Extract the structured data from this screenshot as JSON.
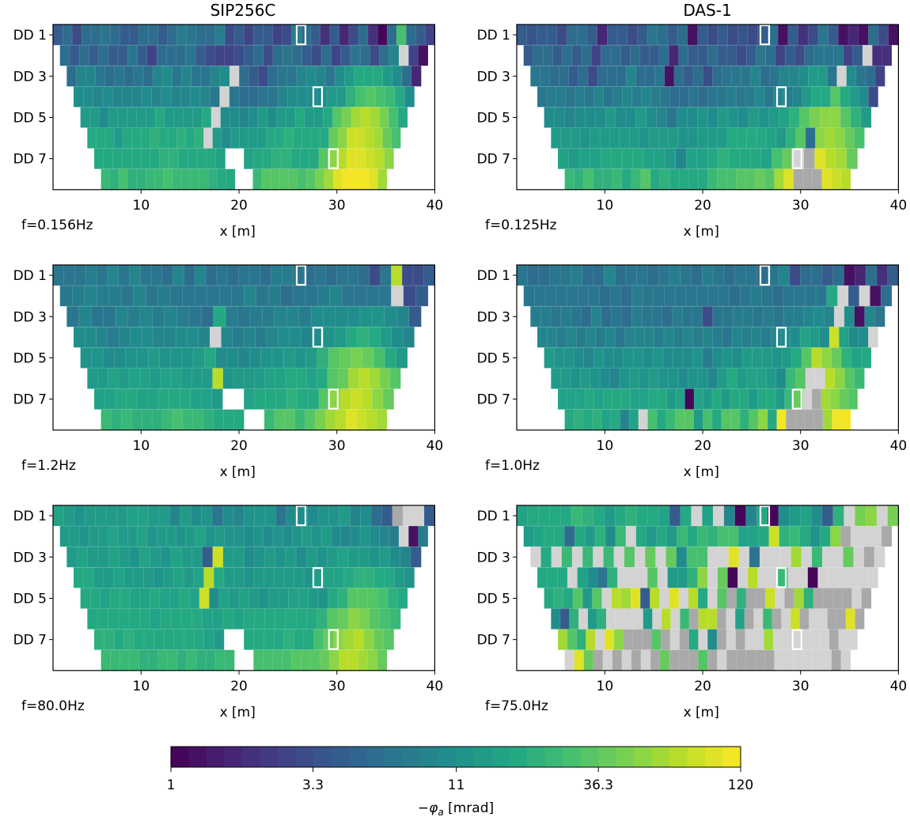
{
  "chart_data": {
    "type": "heatmap",
    "description": "Apparent phase pseudosections (dipole-dipole levels DD1-DD8) along profile, two instruments at three frequencies",
    "columns": [
      {
        "title": "SIP256C"
      },
      {
        "title": "DAS-1"
      }
    ],
    "xlabel": "x [m]",
    "xlim": [
      1,
      40
    ],
    "xticks": [
      "10",
      "20",
      "30",
      "40"
    ],
    "ytick_labels": [
      "DD 1",
      "DD 3",
      "DD 5",
      "DD 7"
    ],
    "levels": 8,
    "colorbar": {
      "label": "−φa [mrad]",
      "label_main": "−φ",
      "label_sub": "a",
      "label_unit": " [mrad]",
      "scale": "log",
      "range": [
        1,
        120
      ],
      "ticks": [
        "1",
        "3.3",
        "11",
        "36.3",
        "120"
      ],
      "colormap": "viridis",
      "n_bins": 32
    },
    "masked_color_light": "#d3d3d3",
    "masked_color_dark": "#a9a9a9",
    "highlight_boxes_x": [
      26.3,
      28.0,
      29.6
    ],
    "highlight_boxes_level": [
      1,
      4,
      7
    ],
    "panels": [
      {
        "column": 0,
        "freq": "f=0.156Hz",
        "rows": [
          "0.30,0.35,0.25,0.35,0.35,0.40,0.35,0.30,0.30,0.35,0.35,0.30,0.35,0.42,0.38,0.35,0.35,0.42,0.25,0.30,0.20,0.30,0.30,0.20,0.25,0.42,0.35,0.30,0.15,0.30,0.10,0.25,0.35,0.15,0.02,0.35,0.70,0.35,0.30,0.20",
          "0.35,0.30,0.35,0.30,0.35,0.30,0.30,0.40,0.30,0.20,0.35,0.35,0.35,0.40,0.30,0.25,0.20,0.20,0.25,0.30,0.35,0.25,0.35,0.40,0.35,0.30,0.25,0.35,0.20,0.30,0.40,0.35,0.25,0.35,0.45,L,0.20,0.05",
          "0.35,0.45,0.45,0.40,0.35,0.40,0.35,0.40,0.35,0.45,0.50,0.40,0.45,0.40,0.40,0.45,0.50,L,0.35,0.30,0.25,0.35,0.40,0.40,0.45,0.50,0.45,0.40,0.50,0.55,0.60,0.62,0.60,0.55,0.50,0.35,0.10",
          "0.50,0.50,0.45,0.50,0.45,0.45,0.45,0.50,0.45,0.50,0.45,0.45,0.50,0.45,0.40,L,0.40,0.35,0.35,0.40,0.40,0.45,0.50,0.50,0.50,0.50,0.55,0.55,0.65,0.70,0.72,0.70,0.68,0.62,0.50",
          "0.55,0.55,0.50,0.55,0.55,0.55,0.55,0.55,0.60,0.55,0.55,0.55,0.55,0.60,L,0.50,0.50,0.45,0.50,0.55,0.50,0.55,0.55,0.60,0.55,0.55,0.60,0.75,0.80,0.85,0.88,0.85,0.80,0.70,0.60",
          "0.60,0.60,0.60,0.55,0.60,0.60,0.60,0.65,0.60,0.60,0.65,0.60,0.65,L,0.55,0.50,0.55,0.55,0.55,0.55,0.60,0.62,0.65,0.60,0.60,0.62,0.60,0.78,0.82,0.92,0.92,0.88,0.85,0.78,0.70",
          "0.62,0.60,0.62,0.62,0.60,0.62,0.62,0.65,0.65,0.62,0.62,0.60,0.60,0.58,N,N,0.58,0.62,0.62,0.65,0.65,0.62,0.62,0.60,0.75,0.82,0.88,0.95,0.95,0.92,0.88,0.82",
          "0.68,0.65,0.70,0.65,0.65,0.68,0.68,0.70,0.68,0.68,0.68,0.68,0.65,0.62,0.62,N,N,0.68,0.72,0.72,0.72,0.72,0.70,0.72,0.80,0.85,0.95,0.98,0.98,0.98,0.95,0.85"
        ]
      },
      {
        "column": 1,
        "freq": "f=0.125Hz",
        "rows": [
          "0.30,0.28,0.30,0.30,0.25,0.35,0.35,0.30,0.10,0.30,0.30,0.25,0.30,0.40,0.35,0.30,0.35,0.05,0.30,0.25,0.30,0.25,0.28,0.25,0.30,0.35,0.05,0.30,0.15,0.25,0.40,0.30,0.05,0.10,0.05,0.35,0.25,0.05",
          "0.30,0.35,0.35,0.30,0.35,0.30,0.35,0.20,0.35,0.35,0.30,0.35,0.30,0.30,0.35,0.10,0.35,0.30,0.30,0.35,0.30,0.30,0.25,0.30,0.40,0.35,0.20,0.30,0.25,0.35,0.40,0.40,0.40,0.20,0.30,L,0.15,0.15",
          "0.40,0.40,0.35,0.35,0.30,0.35,0.25,0.35,0.35,0.35,0.45,0.35,0.35,0.40,0.05,0.35,0.30,0.35,0.25,0.35,0.40,0.40,0.40,0.45,0.35,0.40,0.45,0.45,0.50,0.55,0.55,0.40,L,0.50,0.40,0.35,0.20",
          "0.40,0.42,0.42,0.40,0.42,0.38,0.45,0.40,0.42,0.45,0.42,0.45,0.42,0.40,0.35,0.35,0.40,0.35,0.40,0.40,0.42,0.40,0.42,0.45,0.40,0.45,0.42,0.45,0.55,0.60,0.62,0.75,0.60,0.55,0.50,0.25",
          "0.50,0.50,0.45,0.50,0.50,0.50,0.55,0.50,0.50,0.55,0.50,0.45,0.40,0.50,0.50,0.52,0.50,0.55,0.52,0.50,0.55,0.52,0.55,0.58,0.65,0.72,0.80,0.82,0.82,0.75,0.65,0.55",
          "0.55,0.55,0.55,0.52,0.55,0.55,0.55,0.55,0.55,0.52,0.55,0.55,0.55,0.52,0.52,0.55,0.55,0.55,0.60,0.62,0.60,0.60,0.58,0.55,0.65,0.75,0.35,0.82,0.85,0.82,0.78,0.70",
          "0.58,0.55,0.58,0.58,0.60,0.60,0.62,0.60,0.58,0.58,0.55,0.45,0.58,0.58,0.62,0.65,0.62,0.62,0.60,0.58,0.70,0.78,L,D,0.95,0.88,0.85,0.78",
          "0.68,0.65,0.70,0.65,0.65,0.68,0.62,0.68,0.72,0.62,0.65,0.62,0.62,0.60,0.62,0.68,0.70,0.70,0.72,0.75,0.78,0.72,0.85,0.95,D,D,D,0.95,0.92,0.90"
        ]
      },
      {
        "column": 0,
        "freq": "f=1.2Hz",
        "rows": [
          "0.40,0.40,0.40,0.42,0.40,0.45,0.40,0.45,0.40,0.40,0.35,0.45,0.35,0.45,0.35,0.40,0.35,0.40,0.40,0.35,0.42,0.42,0.40,0.35,0.38,0.35,0.40,0.40,0.35,0.25,0.40,0.90,0.25,0.25,0.30",
          "0.40,0.42,0.45,0.42,0.42,0.40,0.45,0.40,0.42,0.40,0.40,0.38,0.40,0.40,0.38,0.45,0.40,0.42,0.35,0.40,0.40,0.42,0.45,0.40,0.40,0.40,0.38,L,0.25,0.30",
          "0.40,0.45,0.40,0.40,0.45,0.42,0.45,0.42,0.45,0.42,0.40,0.35,0.60,0.42,0.40,0.42,0.42,0.45,0.45,0.42,0.48,0.50,0.50,0.50,0.52,0.52,0.50,0.45,0.30",
          "0.50,0.48,0.45,0.42,0.45,0.48,0.48,0.45,0.45,0.48,0.48,0.45,L,0.45,0.42,0.45,0.42,0.45,0.48,0.48,0.45,0.50,0.52,0.55,0.62,0.65,0.62,0.55,0.50,0.45",
          "0.52,0.52,0.50,0.50,0.52,0.52,0.55,0.52,0.52,0.52,0.55,0.62,0.50,0.48,0.45,0.50,0.52,0.52,0.55,0.52,0.55,0.65,0.72,0.78,0.80,0.78,0.70,0.62,0.55",
          "0.55,0.55,0.58,0.55,0.58,0.58,0.55,0.58,0.58,0.55,0.55,0.55,0.88,0.52,0.55,0.55,0.55,0.58,0.58,0.60,0.60,0.58,0.60,0.72,0.78,0.85,0.88,0.85,0.80,0.75",
          "0.58,0.58,0.60,0.60,0.58,0.58,0.60,0.60,0.60,0.58,0.58,0.55,N,N,0.58,0.60,0.62,0.60,0.65,0.62,0.62,0.75,0.82,0.90,0.92,0.88,0.82,0.78",
          "0.68,0.65,0.68,0.65,0.65,0.65,0.68,0.70,0.68,0.68,0.65,0.62,0.62,0.60,N,N,0.68,0.72,0.72,0.68,0.75,0.80,0.85,0.90,0.95,0.92,0.88,0.85"
        ]
      },
      {
        "column": 1,
        "freq": "f=1.0Hz",
        "rows": [
          "0.40,0.35,0.35,0.40,0.40,0.42,0.35,0.35,0.45,0.35,0.38,0.40,0.35,0.40,0.42,0.38,0.35,0.42,0.38,0.35,0.40,0.38,0.35,0.40,0.45,0.25,0.35,0.35,0.30,0.35,0.05,0.10,0.35,0.15,0.30",
          "0.40,0.40,0.38,0.40,0.40,0.38,0.40,0.35,0.40,0.35,0.42,0.38,0.40,0.38,0.40,0.38,0.40,0.38,0.38,0.35,0.40,0.42,0.40,0.35,0.38,0.38,0.40,0.40,0.62,L,0.30,L,0.05,0.35",
          "0.42,0.42,0.40,0.42,0.38,0.35,0.45,0.35,0.40,0.35,0.42,0.40,0.38,0.35,0.42,0.38,0.40,0.25,0.40,0.40,0.42,0.42,0.40,0.42,0.38,0.42,0.42,0.45,0.50,0.45,L,0.50,0.05,0.45,0.38",
          "0.45,0.45,0.42,0.45,0.42,0.45,0.42,0.45,0.40,0.45,0.45,0.45,0.42,0.45,0.42,0.45,0.42,0.45,0.42,0.40,0.45,0.42,0.45,0.42,0.45,0.48,0.50,0.58,0.55,0.50,0.92,0.58,0.50,0.48,L",
          "0.55,0.52,0.52,0.50,0.45,0.52,0.50,0.50,0.52,0.52,0.50,0.52,0.50,0.48,0.50,0.52,0.42,0.50,0.52,0.48,0.55,0.55,0.55,0.52,0.55,0.62,0.72,0.88,0.82,0.78,0.65,0.58,0.62",
          "0.55,0.55,0.52,0.55,0.52,0.50,0.45,0.52,0.55,0.52,0.55,0.52,0.52,0.50,0.52,0.52,0.45,0.55,0.60,0.55,0.58,0.58,0.55,0.48,0.68,0.72,L,L,0.88,0.82,0.75,0.68",
          "0.58,0.58,0.58,0.60,0.58,0.60,0.62,0.60,0.58,0.58,0.60,0.62,0.55,0.58,0.02,0.58,0.55,0.60,0.55,0.60,0.62,0.55,0.60,0.60,0.55,0.68,0.78,L,D,0.85,0.82,0.78,0.75",
          "0.60,0.65,0.62,0.65,0.58,0.62,0.45,0.58,L,0.70,0.62,0.68,0.72,0.72,0.55,0.70,0.62,0.72,0.75,0.65,0.75,0.82,0.62,0.98,D,D,D,D,0.85,0.98,0.98"
        ]
      },
      {
        "column": 0,
        "freq": "f=80.0Hz",
        "rows": [
          "0.58,0.55,0.52,0.55,0.55,0.55,0.55,0.58,0.58,0.55,0.55,0.45,0.55,0.50,0.52,0.40,0.48,0.45,0.52,0.52,0.52,0.40,0.48,0.50,0.50,0.52,0.52,0.55,0.45,0.48,0.35,0.30,D,L,L,0.30",
          "0.55,0.55,0.52,0.55,0.55,0.58,0.55,0.55,0.58,0.52,0.55,0.55,0.52,0.55,0.58,0.52,0.55,0.52,0.52,0.50,0.52,0.50,0.52,0.50,0.52,0.55,0.52,0.55,0.50,0.45,0.48,0.52,0.50,0.45,0.42,L,0.05,0.42",
          "0.55,0.58,0.55,0.55,0.58,0.55,0.52,0.58,0.55,0.52,0.58,0.55,0.55,0.30,0.92,0.55,0.55,0.48,0.52,0.55,0.52,0.55,0.50,0.55,0.52,0.55,0.58,0.55,0.55,0.52,0.55,0.50,0.45,0.30",
          "0.60,0.60,0.55,0.55,0.58,0.55,0.55,0.55,0.52,0.55,0.58,0.55,0.58,0.90,0.60,0.55,0.55,0.52,0.55,0.55,0.55,0.55,0.55,0.52,0.55,0.58,0.58,0.62,0.65,0.65,0.62,0.60,0.55,0.52",
          "0.60,0.60,0.58,0.60,0.60,0.58,0.58,0.60,0.58,0.58,0.60,0.58,0.92,0.50,0.58,0.55,0.58,0.55,0.52,0.55,0.55,0.58,0.58,0.55,0.52,0.62,0.65,0.72,0.75,0.75,0.70,0.65,0.60",
          "0.62,0.60,0.60,0.62,0.60,0.60,0.58,0.60,0.62,0.60,0.60,0.58,0.58,0.60,0.58,0.60,0.60,0.62,0.60,0.60,0.60,0.62,0.65,0.72,0.78,0.82,0.80,0.75,0.70,0.68",
          "0.65,0.65,0.60,0.65,0.62,0.60,0.62,0.60,0.62,0.60,0.60,0.58,0.55,N,N,0.60,0.62,0.62,0.62,0.65,0.62,0.60,0.70,0.78,0.82,0.85,0.88,0.82,0.78,0.75",
          "0.68,0.68,0.68,0.68,0.65,0.65,0.68,0.68,0.65,0.68,0.65,0.65,0.68,0.68,N,N,0.70,0.70,0.70,0.70,0.72,0.72,0.72,0.78,0.82,0.88,0.90,0.85,0.82,0.78"
        ]
      },
      {
        "column": 1,
        "freq": "f=75.0Hz",
        "rows": [
          "0.58,0.60,0.60,0.60,0.62,0.68,0.65,0.60,0.55,0.62,0.65,0.60,0.62,0.58,0.30,0.62,L,0.58,L,0.45,0.02,0.45,0.62,0.02,0.50,0.55,0.58,0.50,0.30,0.65,L,0.80,0.82,L,0.80",
          "0.55,0.58,0.60,0.62,0.35,0.60,0.55,0.65,0.50,0.68,L,0.62,0.55,0.62,0.55,0.68,0.62,0.68,0.65,0.70,0.70,0.58,0.58,0.62,0.92,0.65,0.68,0.62,0.52,0.62,0.82,D,L,L,L,D",
          "L,0.62,L,0.68,L,0.68,L,0.68,L,0.75,L,0.78,L,0.78,0.50,0.70,0.70,L,L,0.95,L,0.40,L,L,L,0.85,L,0.68,L,L,0.78,L,D,L",
          "0.60,0.62,0.60,L,0.58,0.50,0.40,0.65,L,L,L,0.75,L,0.55,0.55,0.65,0.82,L,0.78,0.02,L,0.90,L,L,0.68,L,L,0.02,L,L,L,L,L,L",
          "0.62,0.65,0.60,0.75,0.55,0.72,L,0.88,0.85,0.95,0.30,0.88,L,0.95,L,0.88,0.60,L,0.75,D,0.65,D,D,0.92,L,D,0.85,0.65,D,D,D,D,L,D",
          "0.50,0.30,0.65,L,0.55,0.65,L,L,L,L,0.55,L,0.90,L,0.68,D,0.88,0.88,D,L,0.58,D,L,0.68,D,L,0.92,D,L,L,D,D,0.95,D",
          "0.85,0.75,0.65,0.90,L,0.95,0.82,D,D,D,0.75,D,L,D,0.60,L,0.50,D,L,D,L,L,0.85,L,L,L,L,L,L,D,L,L",
          "L,0.95,0.78,D,L,D,L,D,L,D,0.78,D,D,D,0.75,D,L,D,D,D,D,D,L,L,L,L,L,L,D,L"
        ]
      }
    ]
  }
}
